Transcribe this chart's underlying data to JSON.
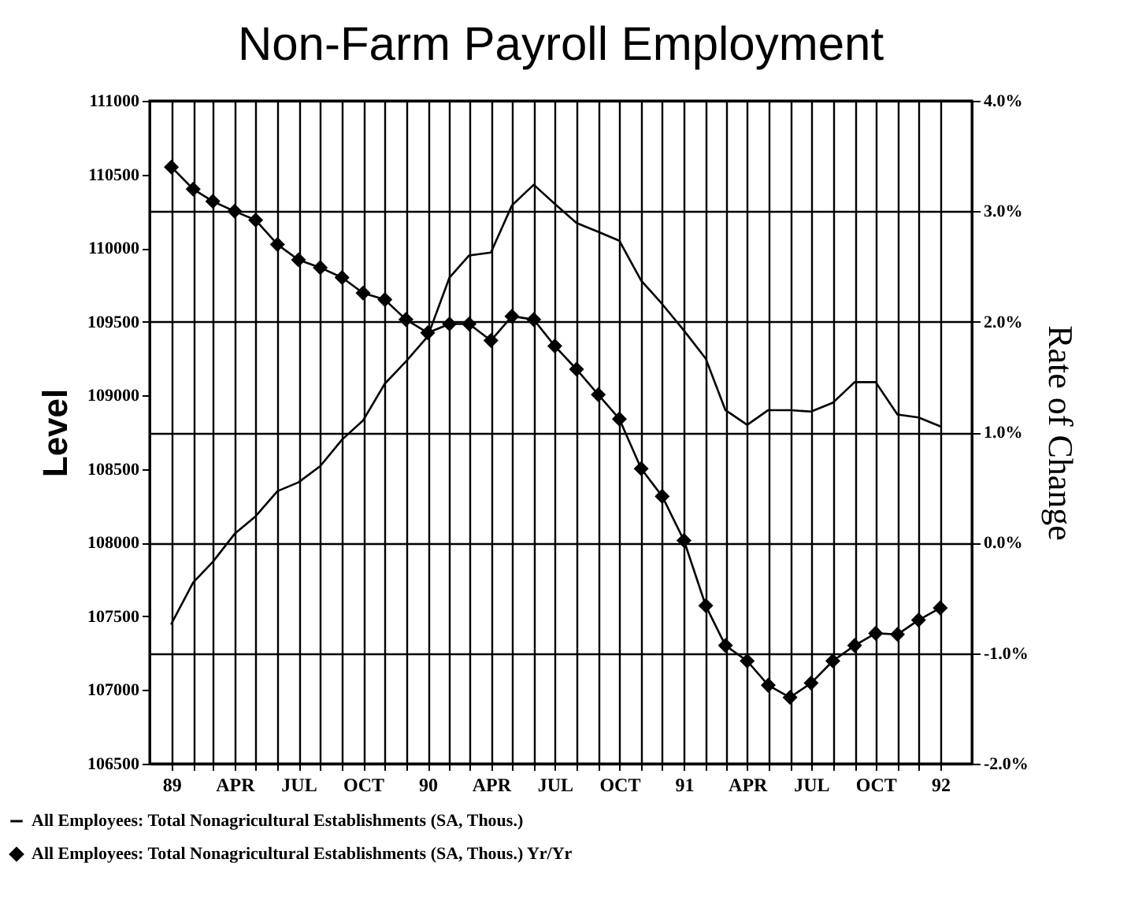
{
  "chart_data": {
    "type": "line",
    "title": "Non-Farm Payroll Employment",
    "ylabel": "Level",
    "y2label": "Rate of Change",
    "x": [
      "1989-01",
      "1989-02",
      "1989-03",
      "1989-04",
      "1989-05",
      "1989-06",
      "1989-07",
      "1989-08",
      "1989-09",
      "1989-10",
      "1989-11",
      "1989-12",
      "1990-01",
      "1990-02",
      "1990-03",
      "1990-04",
      "1990-05",
      "1990-06",
      "1990-07",
      "1990-08",
      "1990-09",
      "1990-10",
      "1990-11",
      "1990-12",
      "1991-01",
      "1991-02",
      "1991-03",
      "1991-04",
      "1991-05",
      "1991-06",
      "1991-07",
      "1991-08",
      "1991-09",
      "1991-10",
      "1991-11",
      "1991-12",
      "1992-01"
    ],
    "series": [
      {
        "name": "All Employees: Total Nonagricultural Establishments (SA, Thous.)",
        "color": "#000000",
        "marker": "none",
        "values": [
          107450,
          107730,
          107870,
          108060,
          108180,
          108350,
          108410,
          108520,
          108700,
          108830,
          109080,
          109230,
          109400,
          109800,
          109950,
          109970,
          110290,
          110430,
          110300,
          110170,
          110110,
          110050,
          109780,
          109620,
          109440,
          109250,
          108900,
          108800,
          108900,
          108900,
          108890,
          108950,
          109090,
          109090,
          108870,
          108850,
          108790
        ]
      },
      {
        "name": "All Employees: Total Nonagricultural Establishments (SA, Thous.) Yr/Yr",
        "color": "#000000",
        "marker": "diamond",
        "axis": "y2",
        "values": [
          3.4,
          3.2,
          3.09,
          3.0,
          2.92,
          2.7,
          2.56,
          2.49,
          2.4,
          2.26,
          2.2,
          2.02,
          1.9,
          1.98,
          1.98,
          1.83,
          2.05,
          2.02,
          1.78,
          1.57,
          1.34,
          1.12,
          0.67,
          0.42,
          0.02,
          -0.57,
          -0.93,
          -1.07,
          -1.29,
          -1.4,
          -1.27,
          -1.07,
          -0.93,
          -0.82,
          -0.83,
          -0.7,
          -0.59
        ]
      }
    ],
    "xlim": [
      "1988-12-01",
      "1992-02-15"
    ],
    "xticks": [
      {
        "value": "1989-01",
        "label": "89"
      },
      {
        "value": "1989-02",
        "label": null
      },
      {
        "value": "1989-03",
        "label": null
      },
      {
        "value": "1989-04",
        "label": "APR"
      },
      {
        "value": "1989-05",
        "label": null
      },
      {
        "value": "1989-06",
        "label": null
      },
      {
        "value": "1989-07",
        "label": "JUL"
      },
      {
        "value": "1989-08",
        "label": null
      },
      {
        "value": "1989-09",
        "label": null
      },
      {
        "value": "1989-10",
        "label": "OCT"
      },
      {
        "value": "1989-11",
        "label": null
      },
      {
        "value": "1989-12",
        "label": null
      },
      {
        "value": "1990-01",
        "label": "90"
      },
      {
        "value": "1990-02",
        "label": null
      },
      {
        "value": "1990-03",
        "label": null
      },
      {
        "value": "1990-04",
        "label": "APR"
      },
      {
        "value": "1990-05",
        "label": null
      },
      {
        "value": "1990-06",
        "label": null
      },
      {
        "value": "1990-07",
        "label": "JUL"
      },
      {
        "value": "1990-08",
        "label": null
      },
      {
        "value": "1990-09",
        "label": null
      },
      {
        "value": "1990-10",
        "label": "OCT"
      },
      {
        "value": "1990-11",
        "label": null
      },
      {
        "value": "1990-12",
        "label": null
      },
      {
        "value": "1991-01",
        "label": "91"
      },
      {
        "value": "1991-02",
        "label": null
      },
      {
        "value": "1991-03",
        "label": null
      },
      {
        "value": "1991-04",
        "label": "APR"
      },
      {
        "value": "1991-05",
        "label": null
      },
      {
        "value": "1991-06",
        "label": null
      },
      {
        "value": "1991-07",
        "label": "JUL"
      },
      {
        "value": "1991-08",
        "label": null
      },
      {
        "value": "1991-09",
        "label": null
      },
      {
        "value": "1991-10",
        "label": "OCT"
      },
      {
        "value": "1991-11",
        "label": null
      },
      {
        "value": "1991-12",
        "label": null
      },
      {
        "value": "1992-01",
        "label": "92"
      }
    ],
    "ylim": [
      106500,
      111000
    ],
    "yticks": [
      106500,
      107000,
      107500,
      108000,
      108500,
      109000,
      109500,
      110000,
      110500,
      111000
    ],
    "y2lim": [
      -2,
      4
    ],
    "y2ticks": [
      {
        "value": -2,
        "label": "-2.0%"
      },
      {
        "value": -1,
        "label": "-1.0%"
      },
      {
        "value": 0,
        "label": "0.0%"
      },
      {
        "value": 1,
        "label": "1.0%"
      },
      {
        "value": 2,
        "label": "2.0%"
      },
      {
        "value": 3,
        "label": "3.0%"
      },
      {
        "value": 4,
        "label": "4.0%"
      }
    ],
    "grid": true,
    "legend": "bottom"
  }
}
